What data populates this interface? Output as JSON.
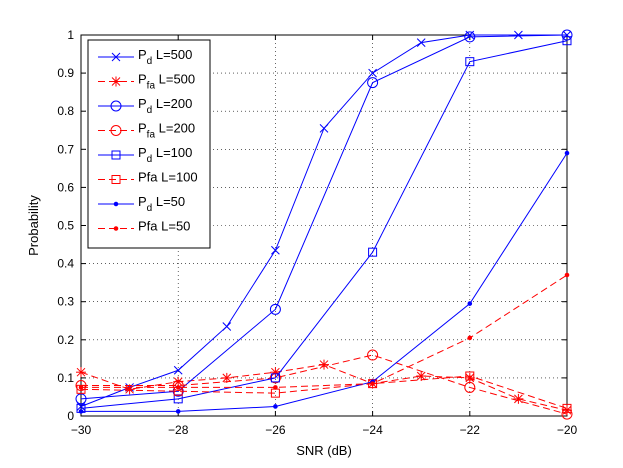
{
  "chart_data": {
    "type": "line",
    "title": "",
    "xlabel": "SNR (dB)",
    "ylabel": "Probability",
    "xlim": [
      -30,
      -20
    ],
    "ylim": [
      0,
      1
    ],
    "xticks": [
      -30,
      -28,
      -26,
      -24,
      -22,
      -20
    ],
    "xtick_labels": [
      "−30",
      "−28",
      "−26",
      "−24",
      "−22",
      "−20"
    ],
    "yticks": [
      0,
      0.1,
      0.2,
      0.3,
      0.4,
      0.5,
      0.6,
      0.7,
      0.8,
      0.9,
      1
    ],
    "ytick_labels": [
      "0",
      "0.1",
      "0.2",
      "0.3",
      "0.4",
      "0.5",
      "0.6",
      "0.7",
      "0.8",
      "0.9",
      "1"
    ],
    "grid": true,
    "legend_position": "top-left",
    "series": [
      {
        "name": "P_d L=500",
        "legend_main": "P",
        "legend_sub": "d",
        "legend_rest": " L=500",
        "color": "#0000ff",
        "dash": "solid",
        "marker": "x",
        "x": [
          -30,
          -29,
          -28,
          -27,
          -26,
          -25,
          -24,
          -23,
          -22,
          -21,
          -20
        ],
        "y": [
          0.025,
          0.075,
          0.12,
          0.235,
          0.435,
          0.755,
          0.9,
          0.98,
          1.0,
          1.0,
          1.0
        ]
      },
      {
        "name": "P_fa L=500",
        "legend_main": "P",
        "legend_sub": "fa",
        "legend_rest": " L=500",
        "color": "#ff0000",
        "dash": "dashed",
        "marker": "star",
        "x": [
          -30,
          -29,
          -28,
          -27,
          -26,
          -25,
          -24,
          -23,
          -22,
          -21,
          -20
        ],
        "y": [
          0.115,
          0.07,
          0.09,
          0.1,
          0.115,
          0.135,
          0.085,
          0.105,
          0.1,
          0.045,
          0.015
        ]
      },
      {
        "name": "P_d L=200",
        "legend_main": "P",
        "legend_sub": "d",
        "legend_rest": " L=200",
        "color": "#0000ff",
        "dash": "solid",
        "marker": "circle",
        "x": [
          -30,
          -28,
          -26,
          -24,
          -22,
          -20
        ],
        "y": [
          0.045,
          0.065,
          0.28,
          0.875,
          0.995,
          1.0
        ]
      },
      {
        "name": "P_fa L=200",
        "legend_main": "P",
        "legend_sub": "fa",
        "legend_rest": " L=200",
        "color": "#ff0000",
        "dash": "dashed",
        "marker": "circle",
        "x": [
          -30,
          -28,
          -26,
          -24,
          -22,
          -20
        ],
        "y": [
          0.08,
          0.08,
          0.1,
          0.16,
          0.075,
          0.005
        ]
      },
      {
        "name": "P_d L=100",
        "legend_main": "P",
        "legend_sub": "d",
        "legend_rest": " L=100",
        "color": "#0000ff",
        "dash": "solid",
        "marker": "square",
        "x": [
          -30,
          -28,
          -26,
          -24,
          -22,
          -20
        ],
        "y": [
          0.02,
          0.045,
          0.1,
          0.43,
          0.93,
          0.985
        ]
      },
      {
        "name": "Pfa L=100",
        "legend_main": "Pfa",
        "legend_sub": "",
        "legend_rest": " L=100",
        "color": "#ff0000",
        "dash": "dashed",
        "marker": "square",
        "x": [
          -30,
          -28,
          -26,
          -24,
          -22,
          -20
        ],
        "y": [
          0.07,
          0.065,
          0.06,
          0.085,
          0.105,
          0.02
        ]
      },
      {
        "name": "P_d L=50",
        "legend_main": "P",
        "legend_sub": "d",
        "legend_rest": " L=50",
        "color": "#0000ff",
        "dash": "solid",
        "marker": "dot",
        "x": [
          -30,
          -28,
          -26,
          -24,
          -22,
          -20
        ],
        "y": [
          0.012,
          0.012,
          0.025,
          0.09,
          0.295,
          0.69
        ]
      },
      {
        "name": "Pfa L=50",
        "legend_main": "Pfa",
        "legend_sub": "",
        "legend_rest": " L=50",
        "color": "#ff0000",
        "dash": "dashed",
        "marker": "dot",
        "x": [
          -30,
          -28,
          -26,
          -24,
          -22,
          -20
        ],
        "y": [
          0.075,
          0.075,
          0.075,
          0.085,
          0.205,
          0.37
        ]
      }
    ]
  }
}
